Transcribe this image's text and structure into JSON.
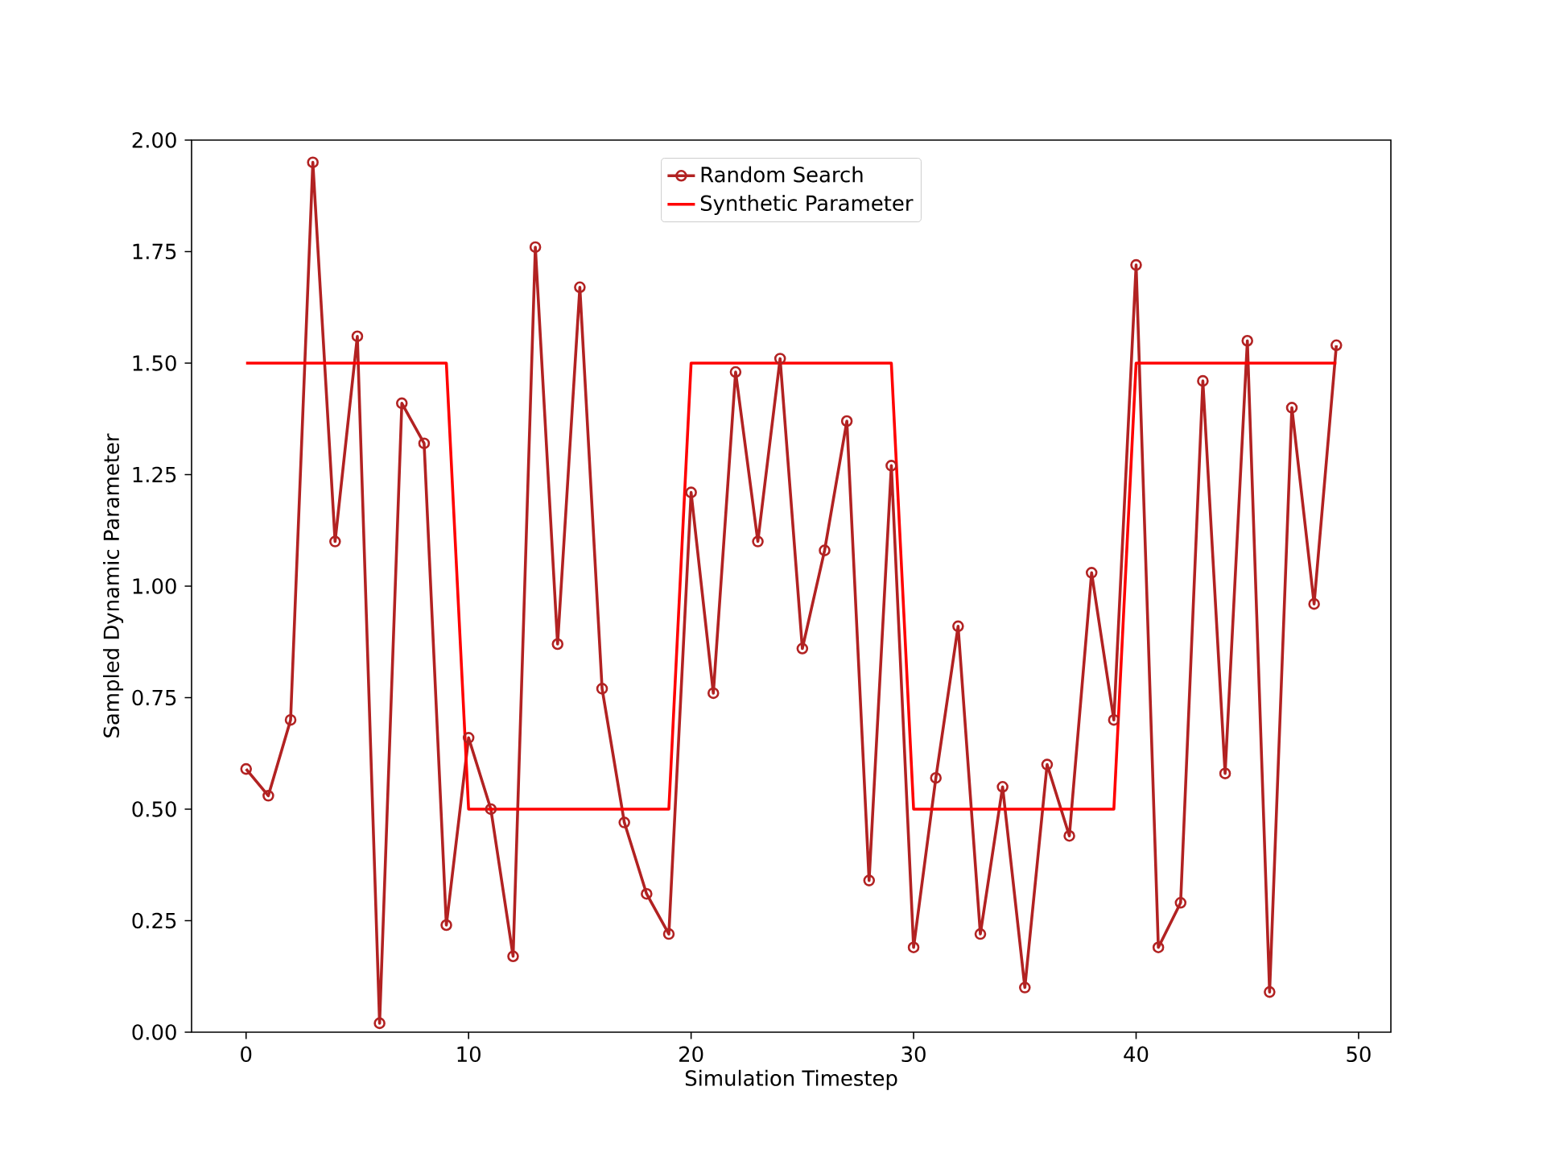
{
  "chart_data": {
    "type": "line",
    "xlabel": "Simulation Timestep",
    "ylabel": "Sampled Dynamic Parameter",
    "xlim": [
      -2.45,
      51.45
    ],
    "ylim": [
      0,
      2
    ],
    "xticks": [
      0,
      10,
      20,
      30,
      40,
      50
    ],
    "yticks": [
      {
        "value": 0,
        "label": "0.00"
      },
      {
        "value": 0.25,
        "label": "0.25"
      },
      {
        "value": 0.5,
        "label": "0.50"
      },
      {
        "value": 0.75,
        "label": "0.75"
      },
      {
        "value": 1,
        "label": "1.00"
      },
      {
        "value": 1.25,
        "label": "1.25"
      },
      {
        "value": 1.5,
        "label": "1.50"
      },
      {
        "value": 1.75,
        "label": "1.75"
      },
      {
        "value": 2,
        "label": "2.00"
      }
    ],
    "legend": "top",
    "grid": false,
    "series": [
      {
        "name": "Random Search",
        "color": "#b22222",
        "marker": "circle",
        "x": [
          0,
          1,
          2,
          3,
          4,
          5,
          6,
          7,
          8,
          9,
          10,
          11,
          12,
          13,
          14,
          15,
          16,
          17,
          18,
          19,
          20,
          21,
          22,
          23,
          24,
          25,
          26,
          27,
          28,
          29,
          30,
          31,
          32,
          33,
          34,
          35,
          36,
          37,
          38,
          39,
          40,
          41,
          42,
          43,
          44,
          45,
          46,
          47,
          48,
          49
        ],
        "values": [
          0.59,
          0.53,
          0.7,
          1.95,
          1.1,
          1.56,
          0.02,
          1.41,
          1.32,
          0.24,
          0.66,
          0.5,
          0.17,
          1.76,
          0.87,
          1.67,
          0.77,
          0.47,
          0.31,
          0.22,
          1.21,
          0.76,
          1.48,
          1.1,
          1.51,
          0.86,
          1.08,
          1.37,
          0.34,
          1.27,
          0.19,
          0.57,
          0.91,
          0.22,
          0.55,
          0.1,
          0.6,
          0.44,
          1.03,
          0.7,
          1.72,
          0.19,
          0.29,
          1.46,
          0.58,
          1.55,
          0.09,
          1.4,
          0.96,
          1.54
        ]
      },
      {
        "name": "Synthetic Parameter",
        "color": "#ff0000",
        "marker": "none",
        "x": [
          0,
          9,
          10,
          19,
          20,
          29,
          30,
          39,
          40,
          49
        ],
        "values": [
          1.5,
          1.5,
          0.5,
          0.5,
          1.5,
          1.5,
          0.5,
          0.5,
          1.5,
          1.5
        ]
      }
    ]
  }
}
